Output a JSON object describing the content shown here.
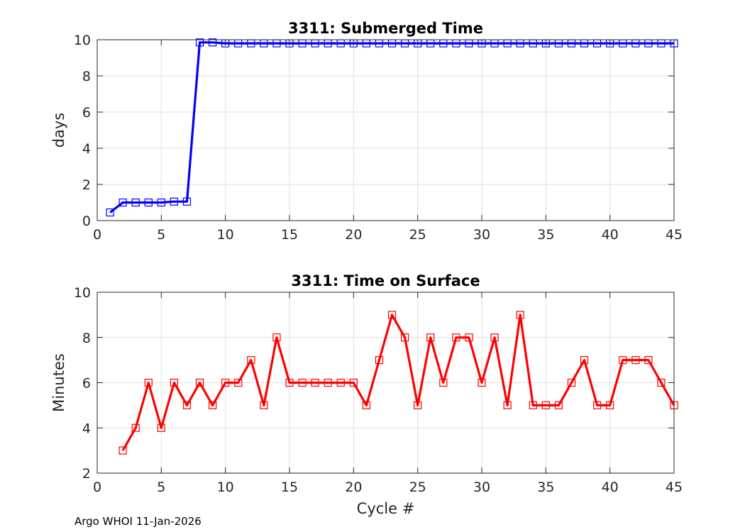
{
  "footer": "Argo WHOI 11-Jan-2026",
  "chart_data": [
    {
      "type": "line",
      "title": "3311: Submerged Time",
      "xlabel": "",
      "ylabel": "days",
      "xlim": [
        0,
        45
      ],
      "ylim": [
        0,
        10
      ],
      "xticks": [
        0,
        5,
        10,
        15,
        20,
        25,
        30,
        35,
        40,
        45
      ],
      "yticks": [
        0,
        2,
        4,
        6,
        8,
        10
      ],
      "grid": true,
      "color": "#0000ff",
      "marker": "square",
      "series": [
        {
          "x": [
            1,
            2,
            3,
            4,
            5,
            6,
            7,
            8,
            9,
            10,
            11,
            12,
            13,
            14,
            15,
            16,
            17,
            18,
            19,
            20,
            21,
            22,
            23,
            24,
            25,
            26,
            27,
            28,
            29,
            30,
            31,
            32,
            33,
            34,
            35,
            36,
            37,
            38,
            39,
            40,
            41,
            42,
            43,
            44,
            45
          ],
          "values": [
            0.45,
            1.0,
            1.0,
            1.0,
            1.0,
            1.05,
            1.05,
            9.85,
            9.85,
            9.8,
            9.8,
            9.8,
            9.8,
            9.8,
            9.8,
            9.8,
            9.8,
            9.8,
            9.8,
            9.8,
            9.8,
            9.8,
            9.8,
            9.8,
            9.8,
            9.8,
            9.8,
            9.8,
            9.8,
            9.8,
            9.8,
            9.8,
            9.8,
            9.8,
            9.8,
            9.8,
            9.8,
            9.8,
            9.8,
            9.8,
            9.8,
            9.8,
            9.8,
            9.8,
            9.8
          ]
        }
      ]
    },
    {
      "type": "line",
      "title": "3311: Time on Surface",
      "xlabel": "Cycle #",
      "ylabel": "Minutes",
      "xlim": [
        0,
        45
      ],
      "ylim": [
        2,
        10
      ],
      "xticks": [
        0,
        5,
        10,
        15,
        20,
        25,
        30,
        35,
        40,
        45
      ],
      "yticks": [
        2,
        4,
        6,
        8,
        10
      ],
      "grid": true,
      "color": "#ff0000",
      "marker": "square",
      "series": [
        {
          "x": [
            2,
            3,
            4,
            5,
            6,
            7,
            8,
            9,
            10,
            11,
            12,
            13,
            14,
            15,
            16,
            17,
            18,
            19,
            20,
            21,
            22,
            23,
            24,
            25,
            26,
            27,
            28,
            29,
            30,
            31,
            32,
            33,
            34,
            35,
            36,
            37,
            38,
            39,
            40,
            41,
            42,
            43,
            44,
            45
          ],
          "values": [
            3,
            4,
            6,
            4,
            6,
            5,
            6,
            5,
            6,
            6,
            7,
            5,
            8,
            6,
            6,
            6,
            6,
            6,
            6,
            5,
            7,
            9,
            8,
            5,
            8,
            6,
            8,
            8,
            6,
            8,
            5,
            9,
            5,
            5,
            5,
            6,
            7,
            5,
            5,
            7,
            7,
            7,
            6,
            5
          ]
        }
      ]
    }
  ]
}
